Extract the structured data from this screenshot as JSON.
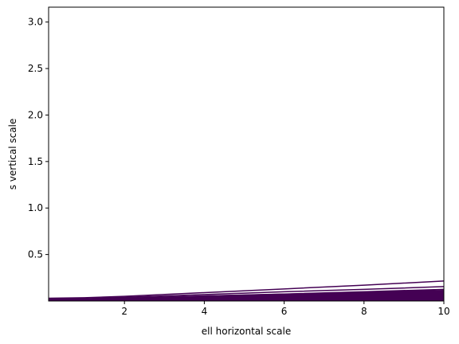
{
  "chart_data": {
    "type": "line",
    "title": "",
    "xlabel": "ell horizontal scale",
    "ylabel": "s vertical scale",
    "xlim": [
      0.1,
      10
    ],
    "ylim": [
      0.0,
      3.16
    ],
    "xticks": [
      2,
      4,
      6,
      8,
      10
    ],
    "xtick_labels": [
      "2",
      "4",
      "6",
      "8",
      "10"
    ],
    "yticks": [
      0.5,
      1.0,
      1.5,
      2.0,
      2.5,
      3.0
    ],
    "ytick_labels": [
      "0.5",
      "1.0",
      "1.5",
      "2.0",
      "2.5",
      "3.0"
    ],
    "line_color": "#440154",
    "fill_color": "#440154",
    "grid": false,
    "legend": "none",
    "series": [
      {
        "x": [
          0.1,
          1,
          2,
          4,
          6,
          8,
          10
        ],
        "values": [
          0.03,
          0.035,
          0.05,
          0.09,
          0.13,
          0.17,
          0.215
        ]
      },
      {
        "x": [
          0.1,
          1,
          2,
          4,
          6,
          8,
          10
        ],
        "values": [
          0.02,
          0.025,
          0.04,
          0.07,
          0.1,
          0.125,
          0.155
        ]
      },
      {
        "x": [
          0.1,
          1,
          2,
          4,
          6,
          8,
          10
        ],
        "values": [
          0.02,
          0.022,
          0.03,
          0.055,
          0.075,
          0.1,
          0.125
        ]
      }
    ],
    "filled_region": {
      "x": [
        0.1,
        2,
        4,
        6,
        8,
        10
      ],
      "upper": [
        0.02,
        0.035,
        0.06,
        0.08,
        0.1,
        0.12
      ],
      "lower": [
        0.0,
        0.0,
        0.0,
        0.0,
        0.0,
        0.0
      ]
    }
  }
}
